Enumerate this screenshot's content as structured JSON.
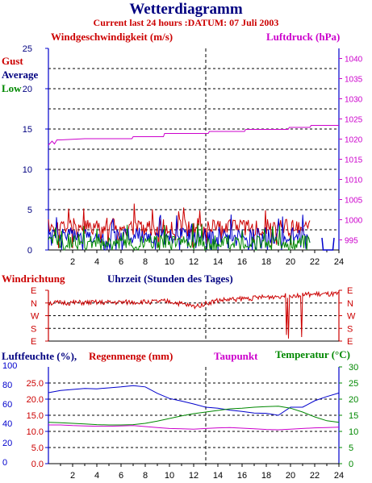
{
  "title": "Wetterdiagramm",
  "subtitle": "Current last 24 hours :DATUM: 07 Juli 2003",
  "colors": {
    "red": "#cc0000",
    "blue": "#0000cc",
    "green": "#008800",
    "magenta": "#cc00cc",
    "navy": "#000080",
    "grid": "#000000",
    "axis_blue": "#0000cc"
  },
  "chart_data": [
    {
      "type": "line",
      "panel": "wind",
      "left_axis_label": "Windgeschwindigkeit (m/s)",
      "right_axis_label": "Luftdruck (hPa)",
      "legend": [
        "Gust",
        "Average",
        "Low"
      ],
      "x_ticks": [
        2,
        4,
        6,
        8,
        10,
        12,
        14,
        16,
        18,
        20,
        22,
        24
      ],
      "xlim": [
        0,
        24
      ],
      "y_left_ticks": [
        0,
        5,
        10,
        15,
        20,
        25
      ],
      "ylim_left": [
        0,
        25
      ],
      "y_right_ticks": [
        995,
        1000,
        1005,
        1010,
        1015,
        1020,
        1025,
        1030,
        1035,
        1040
      ],
      "ylim_right": [
        992.5,
        1042.5
      ],
      "series": [
        {
          "name": "Luftdruck",
          "axis": "right",
          "color_key": "magenta",
          "x": [
            0,
            0.3,
            0.5,
            0.7,
            1.0,
            3,
            6.9,
            7.0,
            9.5,
            9.6,
            13.2,
            13.3,
            16.2,
            16.3,
            19.8,
            19.9,
            21.6,
            21.7,
            24
          ],
          "y": [
            1018.5,
            1019.5,
            1018.8,
            1019.8,
            1019.8,
            1020.1,
            1020.1,
            1020.6,
            1020.6,
            1021.4,
            1021.4,
            1021.9,
            1021.9,
            1022.4,
            1022.4,
            1022.9,
            1022.9,
            1023.4,
            1023.4
          ]
        },
        {
          "name": "Gust",
          "axis": "left",
          "color_key": "red",
          "kind": "noisy",
          "from": 0,
          "to": 21.6,
          "base": 2.9,
          "amp": 1.1,
          "seed": 11
        },
        {
          "name": "Average",
          "axis": "left",
          "color_key": "blue",
          "kind": "noisy",
          "from": 0,
          "to": 21.6,
          "base": 1.8,
          "amp": 1.0,
          "seed": 23
        },
        {
          "name": "Low",
          "axis": "left",
          "color_key": "green",
          "kind": "noisy",
          "from": 0,
          "to": 21.6,
          "base": 1.0,
          "amp": 0.9,
          "seed": 37
        }
      ],
      "end_bars": {
        "x": [
          22.6,
          22.7,
          23.5,
          23.6
        ],
        "y": [
          1.5,
          0,
          0,
          1.5
        ]
      }
    },
    {
      "type": "line",
      "panel": "direction",
      "left_axis_label": "Windrichtung",
      "x_label": "Uhrzeit (Stunden des Tages)",
      "y_ticks": [
        "E",
        "N",
        "W",
        "S",
        "E"
      ],
      "xlim": [
        0,
        24
      ],
      "series": [
        {
          "name": "Windrichtung",
          "color_key": "red",
          "kind": "noisy",
          "from": 0,
          "to": 24,
          "levels": [
            [
              0,
              0.75
            ],
            [
              6,
              0.76
            ],
            [
              10,
              0.78
            ],
            [
              12,
              0.68
            ],
            [
              14,
              0.8
            ],
            [
              17,
              0.85
            ],
            [
              20,
              0.9
            ],
            [
              22,
              0.92
            ],
            [
              24,
              0.92
            ]
          ],
          "amp": 0.05,
          "seed": 51,
          "spikes": [
            [
              19.7,
              0.12
            ],
            [
              19.8,
              0.05
            ],
            [
              20.9,
              0.08
            ]
          ]
        }
      ]
    },
    {
      "type": "line",
      "panel": "humidity",
      "left_axis_label": "Luftfeuchte (%),",
      "left2_axis_label": "Regenmenge (mm)",
      "mid_label": "Taupunkt",
      "right_axis_label": "Temperatur (°C)",
      "x_ticks": [
        2,
        4,
        6,
        8,
        10,
        12,
        14,
        16,
        18,
        20,
        22,
        24
      ],
      "xlim": [
        0,
        24
      ],
      "y_hum_ticks": [
        0,
        20,
        40,
        60,
        80,
        100
      ],
      "y_rain_ticks": [
        "0.0",
        "5.0",
        "10.0",
        "15.0",
        "20.0",
        "25.0"
      ],
      "y_temp_ticks": [
        0,
        5,
        10,
        15,
        20,
        25,
        30
      ],
      "ylim": [
        0,
        30
      ],
      "series": [
        {
          "name": "Luftfeuchte",
          "color_key": "blue",
          "x": [
            0,
            1,
            2,
            3,
            4,
            5,
            6,
            7,
            8,
            9,
            10,
            11,
            12,
            13,
            14,
            15,
            16,
            17,
            18,
            19,
            20,
            21,
            22,
            23,
            24
          ],
          "y": [
            22,
            22.7,
            23,
            23.3,
            23.2,
            23.5,
            23.8,
            24.2,
            23.8,
            21.8,
            20.2,
            19.4,
            18.5,
            17.5,
            17.2,
            16.6,
            16.2,
            15.7,
            15.6,
            15.0,
            17.5,
            17.5,
            19.5,
            20.8,
            21.9
          ]
        },
        {
          "name": "Temperatur",
          "color_key": "green",
          "x": [
            0,
            1,
            2,
            3,
            4,
            5,
            6,
            7,
            8,
            9,
            10,
            11,
            12,
            13,
            14,
            15,
            16,
            17,
            18,
            19,
            20,
            21,
            22,
            23,
            24
          ],
          "y": [
            12.8,
            12.7,
            12.5,
            12.3,
            12.1,
            12.0,
            12.0,
            12.1,
            12.5,
            13.2,
            14.0,
            14.8,
            15.5,
            16.0,
            16.5,
            17.0,
            17.2,
            17.5,
            17.7,
            17.8,
            17.2,
            16.0,
            14.5,
            13.3,
            12.8
          ]
        },
        {
          "name": "Taupunkt",
          "color_key": "magenta",
          "x": [
            0,
            1,
            2,
            3,
            4,
            5,
            6,
            7,
            8,
            9,
            10,
            11,
            12,
            13,
            14,
            15,
            16,
            17,
            18,
            19,
            20,
            21,
            22,
            23,
            24
          ],
          "y": [
            12.0,
            12.0,
            11.8,
            11.7,
            11.6,
            11.6,
            11.7,
            11.8,
            11.5,
            11.2,
            10.9,
            10.8,
            10.7,
            10.9,
            11.1,
            11.2,
            11.0,
            10.8,
            10.6,
            10.5,
            10.7,
            10.9,
            11.1,
            11.2,
            11.3
          ]
        }
      ]
    }
  ]
}
